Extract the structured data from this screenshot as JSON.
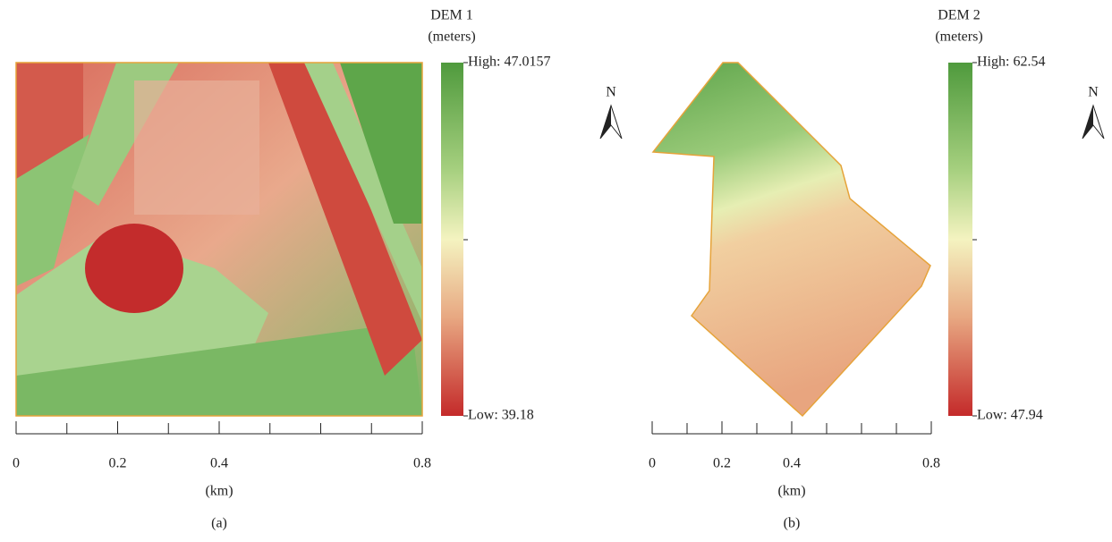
{
  "panels": [
    {
      "legend_title": "DEM 1",
      "legend_unit": "(meters)",
      "high": "High: 47.0157",
      "low": "Low: 39.18",
      "north": "N",
      "scale_bar": {
        "labels": [
          0,
          0.2,
          0.4,
          0.8
        ],
        "unit": "(km)"
      },
      "caption": "(a)"
    },
    {
      "legend_title": "DEM 2",
      "legend_unit": "(meters)",
      "high": "High: 62.54",
      "low": "Low: 47.94",
      "north": "N",
      "scale_bar": {
        "labels": [
          0,
          0.2,
          0.4,
          0.8
        ],
        "unit": "(km)"
      },
      "caption": "(b)"
    }
  ]
}
